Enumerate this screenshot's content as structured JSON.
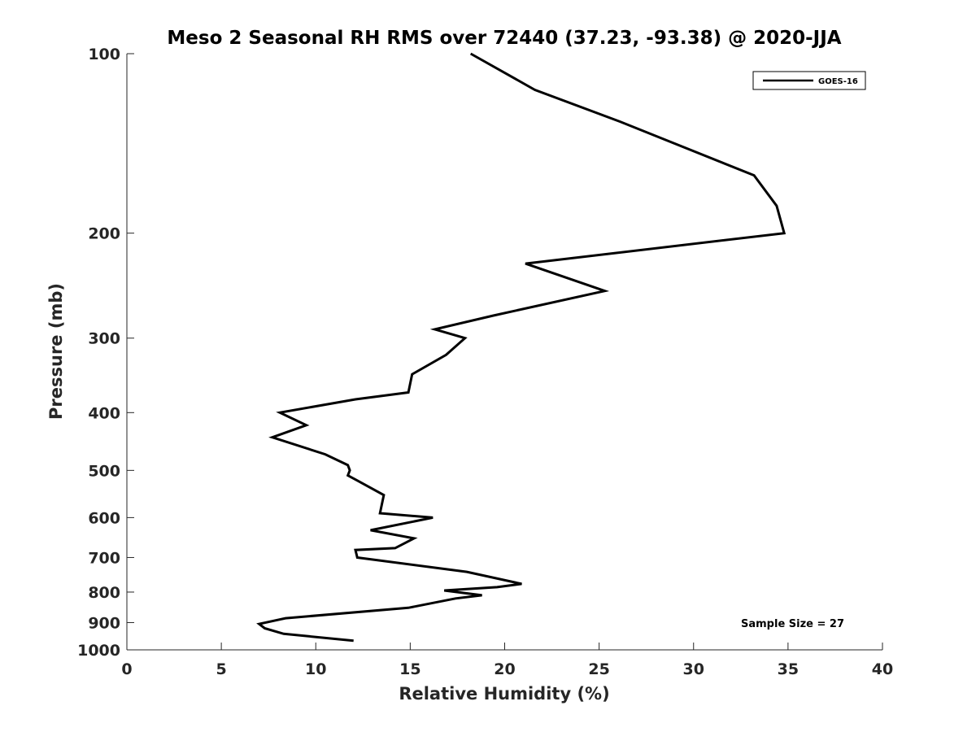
{
  "chart_data": {
    "type": "line",
    "title": "Meso 2 Seasonal RH RMS over 72440 (37.23, -93.38) @ 2020-JJA",
    "xlabel": "Relative Humidity (%)",
    "ylabel": "Pressure (mb)",
    "xlim": [
      0,
      40
    ],
    "ylim": [
      1000,
      100
    ],
    "yscale": "log",
    "y_reversed": true,
    "xticks": [
      0,
      5,
      10,
      15,
      20,
      25,
      30,
      35,
      40
    ],
    "yticks": [
      100,
      200,
      300,
      400,
      500,
      600,
      700,
      800,
      900,
      1000
    ],
    "grid": false,
    "legend_position": "top-right",
    "line_color": "#000000",
    "series": [
      {
        "name": "GOES-16",
        "x": [
          18.2,
          21.6,
          26.1,
          33.2,
          34.4,
          34.8,
          21.1,
          25.3,
          19.4,
          16.3,
          17.9,
          16.9,
          15.1,
          14.9,
          12.1,
          8.1,
          9.5,
          7.7,
          10.5,
          11.7,
          11.8,
          11.7,
          12.2,
          13.6,
          13.4,
          16.2,
          12.9,
          15.2,
          14.2,
          12.1,
          12.2,
          18.0,
          20.9,
          19.6,
          16.8,
          18.8,
          17.4,
          14.9,
          8.4,
          7.0,
          7.3,
          8.3,
          12.0
        ],
        "y": [
          100,
          115,
          130,
          160,
          180,
          200,
          225,
          250,
          275,
          290,
          300,
          320,
          345,
          370,
          380,
          400,
          420,
          440,
          470,
          490,
          500,
          510,
          520,
          550,
          590,
          600,
          630,
          650,
          675,
          680,
          700,
          740,
          775,
          785,
          795,
          810,
          820,
          850,
          885,
          905,
          920,
          940,
          965
        ]
      }
    ],
    "annotation": "Sample Size = 27"
  }
}
